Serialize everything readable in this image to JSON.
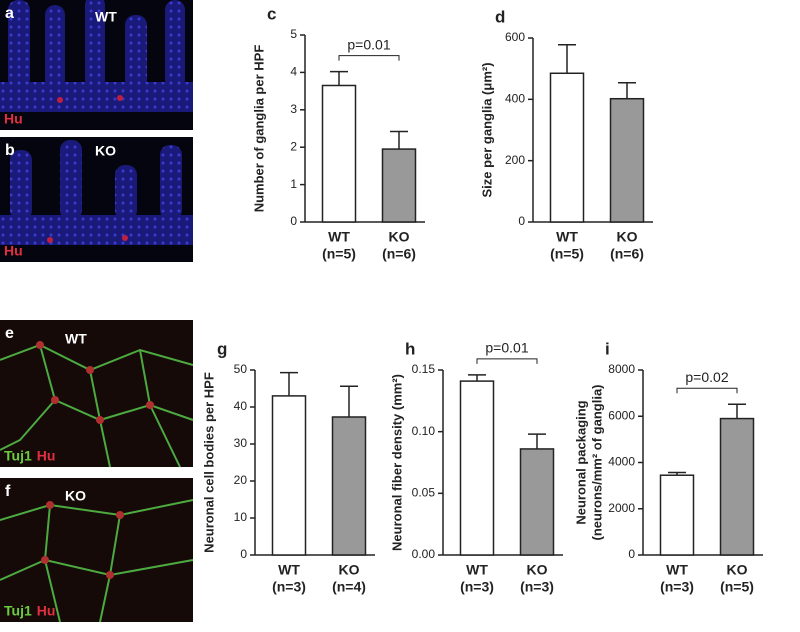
{
  "chart_data": [
    {
      "type": "bar",
      "panel": "c",
      "ylabel": [
        "Number of ganglia per HPF"
      ],
      "categories": [
        "WT",
        "KO"
      ],
      "n_labels": [
        "(n=5)",
        "(n=6)"
      ],
      "values": [
        3.65,
        1.95
      ],
      "errors": [
        0.37,
        0.47
      ],
      "colors": [
        "#ffffff",
        "#999999"
      ],
      "ylim": [
        0,
        5
      ],
      "yticks": [
        0,
        1,
        2,
        3,
        4,
        5
      ],
      "annotation": "p=0.01"
    },
    {
      "type": "bar",
      "panel": "d",
      "ylabel": [
        "Size per ganglia (μm²)"
      ],
      "categories": [
        "WT",
        "KO"
      ],
      "n_labels": [
        "(n=5)",
        "(n=6)"
      ],
      "values": [
        485,
        402
      ],
      "errors": [
        93,
        52
      ],
      "colors": [
        "#ffffff",
        "#999999"
      ],
      "ylim": [
        0,
        600
      ],
      "yticks": [
        0,
        200,
        400,
        600
      ]
    },
    {
      "type": "bar",
      "panel": "g",
      "ylabel": [
        "Neuronal cell bodies per HPF"
      ],
      "categories": [
        "WT",
        "KO"
      ],
      "n_labels": [
        "(n=3)",
        "(n=4)"
      ],
      "values": [
        43,
        37.3
      ],
      "errors": [
        6.3,
        8.3
      ],
      "colors": [
        "#ffffff",
        "#999999"
      ],
      "ylim": [
        0,
        50
      ],
      "yticks": [
        0,
        10,
        20,
        30,
        40,
        50
      ]
    },
    {
      "type": "bar",
      "panel": "h",
      "ylabel": [
        "Neuronal fiber density (mm²)"
      ],
      "categories": [
        "WT",
        "KO"
      ],
      "n_labels": [
        "(n=3)",
        "(n=3)"
      ],
      "values": [
        0.141,
        0.086
      ],
      "errors": [
        0.005,
        0.012
      ],
      "colors": [
        "#ffffff",
        "#999999"
      ],
      "ylim": [
        0,
        0.15
      ],
      "yticks": [
        {
          "value": 0,
          "label": "0.00"
        },
        {
          "value": 0.05,
          "label": "0.05"
        },
        {
          "value": 0.1,
          "label": "0.10"
        },
        {
          "value": 0.15,
          "label": "0.15"
        }
      ],
      "annotation": "p=0.01"
    },
    {
      "type": "bar",
      "panel": "i",
      "ylabel": [
        "Neuronal packaging",
        "(neurons/mm² of ganglia)"
      ],
      "categories": [
        "WT",
        "KO"
      ],
      "n_labels": [
        "(n=3)",
        "(n=5)"
      ],
      "values": [
        3450,
        5900
      ],
      "errors": [
        120,
        620
      ],
      "colors": [
        "#ffffff",
        "#999999"
      ],
      "ylim": [
        0,
        8000
      ],
      "yticks": [
        0,
        2000,
        4000,
        6000,
        8000
      ],
      "annotation": "p=0.02"
    }
  ],
  "image_panels": [
    {
      "label": "a",
      "genotype": "WT",
      "stains": [
        "Hu"
      ]
    },
    {
      "label": "b",
      "genotype": "KO",
      "stains": [
        "Hu"
      ]
    },
    {
      "label": "e",
      "genotype": "WT",
      "stains": [
        "Tuj1",
        "Hu"
      ]
    },
    {
      "label": "f",
      "genotype": "KO",
      "stains": [
        "Tuj1",
        "Hu"
      ]
    }
  ]
}
